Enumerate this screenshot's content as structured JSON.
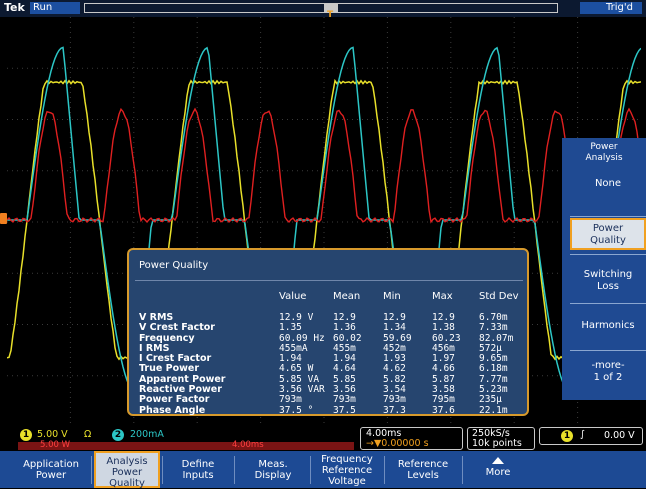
{
  "top_bar": {
    "brand": "Tek",
    "acquisition_state": "Run",
    "trigger_state": "Trig'd",
    "trigger_marker": "T"
  },
  "colors": {
    "ch1_yellow": "#e8e02a",
    "ch2_cyan": "#2cc6c6",
    "math_red": "#e02020",
    "menu_blue": "#1d4a94",
    "highlight_orange": "#f0a020"
  },
  "side_menu": {
    "title": "Power\nAnalysis",
    "buttons": [
      {
        "label": "None"
      },
      {
        "label": "Power\nQuality"
      },
      {
        "label": "Switching\nLoss"
      },
      {
        "label": "Harmonics"
      },
      {
        "label": "-more-\n1 of 2"
      }
    ]
  },
  "power_quality": {
    "title": "Power Quality",
    "columns": [
      "Value",
      "Mean",
      "Min",
      "Max",
      "Std Dev"
    ],
    "rows": [
      {
        "name": "V RMS",
        "value": "12.9 V",
        "mean": "12.9",
        "min": "12.9",
        "max": "12.9",
        "std": "6.70m"
      },
      {
        "name": "V Crest Factor",
        "value": "1.35",
        "mean": "1.36",
        "min": "1.34",
        "max": "1.38",
        "std": "7.33m"
      },
      {
        "name": "Frequency",
        "value": "60.09 Hz",
        "mean": "60.02",
        "min": "59.69",
        "max": "60.23",
        "std": "82.07m"
      },
      {
        "name": "I RMS",
        "value": "455mA",
        "mean": "455m",
        "min": "452m",
        "max": "456m",
        "std": "572μ"
      },
      {
        "name": "I Crest Factor",
        "value": "1.94",
        "mean": "1.94",
        "min": "1.93",
        "max": "1.97",
        "std": "9.65m"
      },
      {
        "name": "True Power",
        "value": "4.65 W",
        "mean": "4.64",
        "min": "4.62",
        "max": "4.66",
        "std": "6.18m"
      },
      {
        "name": "Apparent Power",
        "value": "5.85 VA",
        "mean": "5.85",
        "min": "5.82",
        "max": "5.87",
        "std": "7.77m"
      },
      {
        "name": "Reactive Power",
        "value": "3.56 VAR",
        "mean": "3.56",
        "min": "3.54",
        "max": "3.58",
        "std": "5.23m"
      },
      {
        "name": "Power Factor",
        "value": "793m",
        "mean": "793m",
        "min": "793m",
        "max": "795m",
        "std": "235μ"
      },
      {
        "name": "Phase Angle",
        "value": "37.5 °",
        "mean": "37.5",
        "min": "37.3",
        "max": "37.6",
        "std": "22.1m"
      }
    ]
  },
  "status": {
    "ch1_num": "1",
    "ch1_scale": "5.00 V",
    "ch1_coupling": "Ω",
    "ch2_num": "2",
    "ch2_scale": "200mA",
    "math_scale": "5.00 W",
    "math_time": "4.00ms",
    "timebase": "4.00ms",
    "trigger_pos": "→▼0.00000 s",
    "sample_rate": "250kS/s",
    "record_length": "10k points",
    "trig_ch": "1",
    "trig_slope": "∫",
    "trig_level": "0.00 V"
  },
  "bottom_menu": {
    "buttons": [
      {
        "label": "Application\nPower"
      },
      {
        "label": "Analysis\nPower\nQuality"
      },
      {
        "label": "Define\nInputs"
      },
      {
        "label": "Meas.\nDisplay"
      },
      {
        "label": "Frequency\nReference\nVoltage"
      },
      {
        "label": "Reference\nLevels"
      },
      {
        "label": "More"
      }
    ]
  }
}
